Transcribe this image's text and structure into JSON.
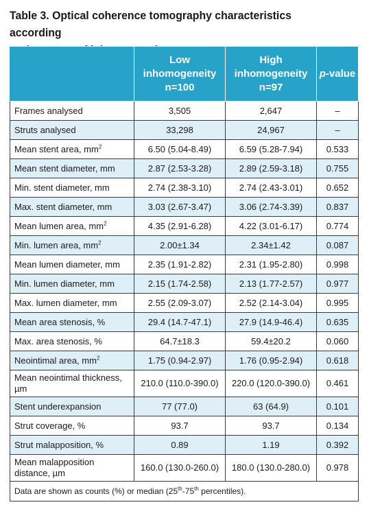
{
  "caption": {
    "line1": "Table 3. Optical coherence tomography characteristics according",
    "line2": "to the extent of inhomogeneity."
  },
  "header": {
    "col1": "",
    "col2_line1": "Low",
    "col2_line2": "inhomogeneity",
    "col2_line3": "n=100",
    "col3_line1": "High",
    "col3_line2": "inhomogeneity",
    "col3_line3": "n=97",
    "col4_italic": "p",
    "col4_rest": "-value"
  },
  "rows": [
    {
      "label": "Frames analysed",
      "low": "3,505",
      "high": "2,647",
      "p": "–"
    },
    {
      "label": "Struts analysed",
      "low": "33,298",
      "high": "24,967",
      "p": "–"
    },
    {
      "label": "Mean stent area, mm",
      "sup": "2",
      "low": "6.50 (5.04-8.49)",
      "high": "6.59 (5.28-7.94)",
      "p": "0.533"
    },
    {
      "label": "Mean stent diameter, mm",
      "low": "2.87 (2.53-3.28)",
      "high": "2.89 (2.59-3.18)",
      "p": "0.755"
    },
    {
      "label": "Min. stent diameter, mm",
      "low": "2.74 (2.38-3.10)",
      "high": "2.74 (2.43-3.01)",
      "p": "0.652"
    },
    {
      "label": "Max. stent diameter, mm",
      "low": "3.03 (2.67-3.47)",
      "high": "3.06 (2.74-3.39)",
      "p": "0.837"
    },
    {
      "label": "Mean lumen area, mm",
      "sup": "2",
      "low": "4.35 (2.91-6.28)",
      "high": "4.22 (3.01-6.17)",
      "p": "0.774"
    },
    {
      "label": "Min. lumen area, mm",
      "sup": "2",
      "low": "2.00±1.34",
      "high": "2.34±1.42",
      "p": "0.087"
    },
    {
      "label": "Mean lumen diameter, mm",
      "low": "2.35 (1.91-2.82)",
      "high": "2.31 (1.95-2.80)",
      "p": "0.998"
    },
    {
      "label": "Min. lumen diameter, mm",
      "low": "2.15 (1.74-2.58)",
      "high": "2.13 (1.77-2.57)",
      "p": "0.977"
    },
    {
      "label": "Max. lumen diameter, mm",
      "low": "2.55 (2.09-3.07)",
      "high": "2.52 (2.14-3.04)",
      "p": "0.995"
    },
    {
      "label": "Mean area stenosis, %",
      "low": "29.4 (14.7-47.1)",
      "high": "27.9 (14.9-46.4)",
      "p": "0.635"
    },
    {
      "label": "Max. area stenosis, %",
      "low": "64.7±18.3",
      "high": "59.4±20.2",
      "p": "0.060"
    },
    {
      "label": "Neointimal area, mm",
      "sup": "2",
      "low": "1.75 (0.94-2.97)",
      "high": "1.76 (0.95-2.94)",
      "p": "0.618"
    },
    {
      "label": "Mean neointimal thickness,",
      "label2": "µm",
      "low": "210.0 (110.0-390.0)",
      "high": "220.0 (120.0-390.0)",
      "p": "0.461"
    },
    {
      "label": "Stent underexpansion",
      "low": "77 (77.0)",
      "high": "63 (64.9)",
      "p": "0.101"
    },
    {
      "label": "Strut coverage, %",
      "low": "93.7",
      "high": "93.7",
      "p": "0.134"
    },
    {
      "label": "Strut malapposition, %",
      "low": "0.89",
      "high": "1.19",
      "p": "0.392"
    },
    {
      "label": "Mean malapposition",
      "label2": "distance, µm",
      "low": "160.0 (130.0-260.0)",
      "high": "180.0 (130.0-280.0)",
      "p": "0.978"
    }
  ],
  "footnote": {
    "part1": "Data are shown as counts (%) or median (25",
    "sup1": "th",
    "part2": "-75",
    "sup2": "th",
    "part3": " percentiles)."
  },
  "colors": {
    "header_bg": "#27a2c9",
    "stripe_bg": "#deeff7",
    "border": "#3a3a3a"
  }
}
